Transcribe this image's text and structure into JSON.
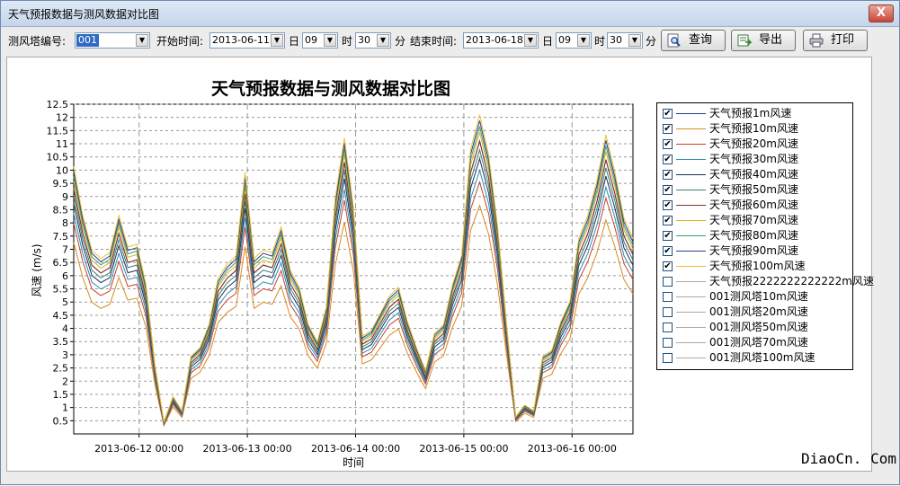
{
  "window": {
    "title": "天气预报数据与测风数据对比图",
    "close_label": "X"
  },
  "toolbar": {
    "tower_label": "测风塔编号:",
    "tower_value": "001",
    "start_label": "开始时间:",
    "start_date": "2013-06-11",
    "start_day_label": "日",
    "start_hour": "09",
    "start_hour_label": "时",
    "start_minute": "30",
    "start_minute_label": "分",
    "end_label": "结束时间:",
    "end_date": "2013-06-18",
    "end_day_label": "日",
    "end_hour": "09",
    "end_hour_label": "时",
    "end_minute": "30",
    "end_minute_label": "分",
    "query_label": "查询",
    "export_label": "导出",
    "print_label": "打印"
  },
  "watermark": "DiaoCn. Com",
  "chart_data": {
    "type": "line",
    "title": "天气预报数据与测风数据对比图",
    "xlabel": "时间",
    "ylabel": "风速 (m/s)",
    "ylim": [
      0,
      12.5
    ],
    "yticks": [
      "0.5",
      "1",
      "1.5",
      "2",
      "2.5",
      "3",
      "3.5",
      "4",
      "4.5",
      "5",
      "5.5",
      "6",
      "6.5",
      "7",
      "7.5",
      "8",
      "8.5",
      "9",
      "9.5",
      "10",
      "10.5",
      "11",
      "11.5",
      "12",
      "12.5"
    ],
    "xticks": [
      "2013-06-12 00:00",
      "2013-06-13 00:00",
      "2013-06-14 00:00",
      "2013-06-15 00:00",
      "2013-06-16 00:00"
    ],
    "grid": true,
    "legend_position": "right",
    "base_times": [
      0,
      2,
      4,
      6,
      8,
      10,
      12,
      14,
      16,
      18,
      20,
      22,
      24,
      26,
      28,
      30,
      32,
      34,
      36,
      38,
      40,
      42,
      44,
      46,
      48,
      50,
      52,
      54,
      56,
      58,
      60,
      62,
      64,
      66,
      68,
      70,
      72,
      74,
      76,
      78,
      80,
      82,
      84,
      86,
      88,
      90,
      92,
      94,
      96,
      98,
      100,
      102,
      104,
      106,
      108,
      110,
      112,
      114,
      116,
      118,
      120,
      122,
      124
    ],
    "base_profile": [
      9.3,
      7.6,
      6.4,
      6.1,
      6.3,
      7.6,
      6.5,
      6.6,
      5.2,
      2.4,
      0.4,
      1.3,
      0.8,
      2.7,
      3.0,
      3.8,
      5.4,
      5.9,
      6.2,
      9.1,
      6.1,
      6.4,
      6.3,
      7.2,
      5.7,
      5.1,
      3.8,
      3.2,
      4.4,
      8.2,
      10.3,
      7.9,
      3.4,
      3.6,
      4.2,
      4.8,
      5.1,
      3.9,
      3.0,
      2.2,
      3.5,
      3.8,
      5.2,
      6.2,
      9.9,
      11.1,
      9.7,
      7.2,
      3.8,
      0.6,
      1.0,
      0.8,
      2.7,
      2.9,
      3.9,
      4.6,
      6.8,
      7.6,
      8.8,
      10.4,
      9.1,
      7.5,
      6.8
    ],
    "series": [
      {
        "name": "天气预报1m风速",
        "checked": true,
        "color": "#1f3f7f",
        "scale": 1.0
      },
      {
        "name": "天气预报10m风速",
        "checked": true,
        "color": "#d88a1e",
        "scale": 0.78
      },
      {
        "name": "天气预报20m风速",
        "checked": true,
        "color": "#c8402a",
        "scale": 0.86
      },
      {
        "name": "天气预报30m风速",
        "checked": true,
        "color": "#2f8fb0",
        "scale": 0.9
      },
      {
        "name": "天气预报40m风速",
        "checked": true,
        "color": "#1b2f5f",
        "scale": 0.94
      },
      {
        "name": "天气预报50m风速",
        "checked": true,
        "color": "#3a7f6f",
        "scale": 0.97
      },
      {
        "name": "天气预报60m风速",
        "checked": true,
        "color": "#8a2f2f",
        "scale": 1.0
      },
      {
        "name": "天气预报70m风速",
        "checked": true,
        "color": "#e0b020",
        "scale": 1.03
      },
      {
        "name": "天气预报80m风速",
        "checked": true,
        "color": "#3aa07a",
        "scale": 1.05
      },
      {
        "name": "天气预报90m风速",
        "checked": true,
        "color": "#2a3d8a",
        "scale": 1.07
      },
      {
        "name": "天气预报100m风速",
        "checked": true,
        "color": "#f0c030",
        "scale": 1.09
      },
      {
        "name": "天气预报2222222222222m风速",
        "checked": false,
        "color": "#aaaaaa",
        "scale": 1.0
      },
      {
        "name": "001测风塔10m风速",
        "checked": false,
        "color": "#aaaaaa",
        "scale": 1.0
      },
      {
        "name": "001测风塔20m风速",
        "checked": false,
        "color": "#aaaaaa",
        "scale": 1.0
      },
      {
        "name": "001测风塔50m风速",
        "checked": false,
        "color": "#aaaaaa",
        "scale": 1.0
      },
      {
        "name": "001测风塔70m风速",
        "checked": false,
        "color": "#aaaaaa",
        "scale": 1.0
      },
      {
        "name": "001测风塔100m风速",
        "checked": false,
        "color": "#aaaaaa",
        "scale": 1.0
      }
    ]
  }
}
